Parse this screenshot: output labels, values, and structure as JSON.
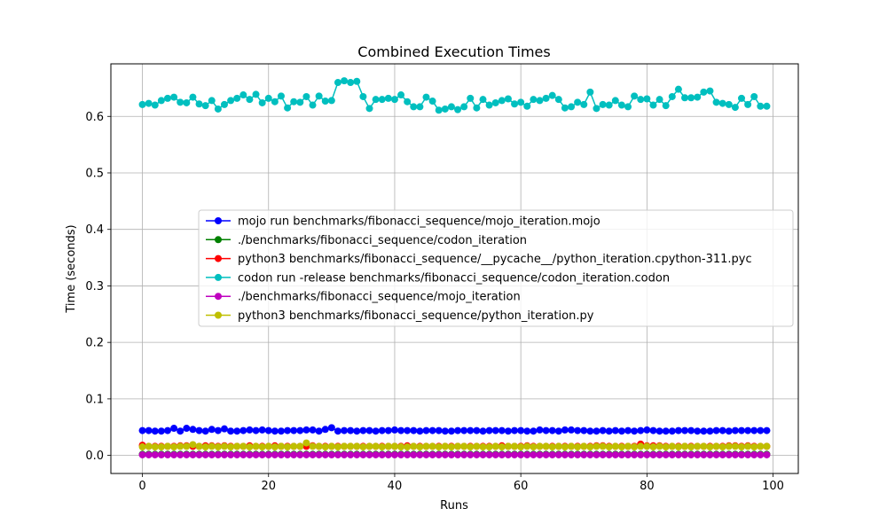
{
  "chart_data": {
    "type": "line",
    "title": "Combined Execution Times",
    "xlabel": "Runs",
    "ylabel": "Time (seconds)",
    "xlim": [
      -5,
      104
    ],
    "ylim": [
      -0.032,
      0.693
    ],
    "xticks": [
      0,
      20,
      40,
      60,
      80,
      100
    ],
    "yticks": [
      0.0,
      0.1,
      0.2,
      0.3,
      0.4,
      0.5,
      0.6
    ],
    "grid": true,
    "legend_placement": "center-right",
    "x": [
      0,
      1,
      2,
      3,
      4,
      5,
      6,
      7,
      8,
      9,
      10,
      11,
      12,
      13,
      14,
      15,
      16,
      17,
      18,
      19,
      20,
      21,
      22,
      23,
      24,
      25,
      26,
      27,
      28,
      29,
      30,
      31,
      32,
      33,
      34,
      35,
      36,
      37,
      38,
      39,
      40,
      41,
      42,
      43,
      44,
      45,
      46,
      47,
      48,
      49,
      50,
      51,
      52,
      53,
      54,
      55,
      56,
      57,
      58,
      59,
      60,
      61,
      62,
      63,
      64,
      65,
      66,
      67,
      68,
      69,
      70,
      71,
      72,
      73,
      74,
      75,
      76,
      77,
      78,
      79,
      80,
      81,
      82,
      83,
      84,
      85,
      86,
      87,
      88,
      89,
      90,
      91,
      92,
      93,
      94,
      95,
      96,
      97,
      98,
      99
    ],
    "series": [
      {
        "name": "mojo run benchmarks/fibonacci_sequence/mojo_iteration.mojo",
        "color": "#0000ff",
        "values": [
          0.044,
          0.044,
          0.043,
          0.043,
          0.044,
          0.048,
          0.043,
          0.048,
          0.046,
          0.044,
          0.043,
          0.046,
          0.044,
          0.047,
          0.043,
          0.043,
          0.044,
          0.045,
          0.044,
          0.045,
          0.044,
          0.043,
          0.043,
          0.044,
          0.044,
          0.044,
          0.045,
          0.045,
          0.043,
          0.046,
          0.049,
          0.043,
          0.044,
          0.044,
          0.043,
          0.044,
          0.044,
          0.043,
          0.044,
          0.044,
          0.045,
          0.044,
          0.044,
          0.044,
          0.043,
          0.044,
          0.044,
          0.044,
          0.043,
          0.043,
          0.044,
          0.044,
          0.044,
          0.044,
          0.043,
          0.044,
          0.044,
          0.044,
          0.043,
          0.044,
          0.044,
          0.043,
          0.043,
          0.045,
          0.044,
          0.044,
          0.043,
          0.045,
          0.045,
          0.044,
          0.044,
          0.043,
          0.043,
          0.044,
          0.043,
          0.044,
          0.043,
          0.044,
          0.043,
          0.044,
          0.045,
          0.044,
          0.043,
          0.043,
          0.043,
          0.044,
          0.044,
          0.044,
          0.043,
          0.043,
          0.043,
          0.044,
          0.044,
          0.043,
          0.044,
          0.044,
          0.044,
          0.044,
          0.044,
          0.044
        ]
      },
      {
        "name": "./benchmarks/fibonacci_sequence/codon_iteration",
        "color": "#008000",
        "values": [
          0.002,
          0.002,
          0.002,
          0.002,
          0.002,
          0.002,
          0.002,
          0.002,
          0.002,
          0.002,
          0.002,
          0.002,
          0.002,
          0.002,
          0.002,
          0.002,
          0.002,
          0.002,
          0.002,
          0.002,
          0.002,
          0.002,
          0.002,
          0.002,
          0.002,
          0.002,
          0.002,
          0.002,
          0.002,
          0.002,
          0.002,
          0.002,
          0.002,
          0.002,
          0.002,
          0.002,
          0.002,
          0.002,
          0.002,
          0.002,
          0.002,
          0.002,
          0.002,
          0.002,
          0.002,
          0.002,
          0.002,
          0.002,
          0.002,
          0.002,
          0.002,
          0.002,
          0.002,
          0.002,
          0.002,
          0.002,
          0.002,
          0.002,
          0.002,
          0.002,
          0.002,
          0.002,
          0.002,
          0.002,
          0.002,
          0.002,
          0.002,
          0.002,
          0.002,
          0.002,
          0.002,
          0.002,
          0.002,
          0.002,
          0.002,
          0.002,
          0.002,
          0.002,
          0.002,
          0.002,
          0.002,
          0.002,
          0.002,
          0.002,
          0.002,
          0.002,
          0.002,
          0.002,
          0.002,
          0.002,
          0.002,
          0.002,
          0.002,
          0.002,
          0.002,
          0.002,
          0.002,
          0.002,
          0.002,
          0.002
        ]
      },
      {
        "name": "python3 benchmarks/fibonacci_sequence/__pycache__/python_iteration.cpython-311.pyc",
        "color": "#ff0000",
        "values": [
          0.018,
          0.016,
          0.016,
          0.016,
          0.016,
          0.016,
          0.017,
          0.017,
          0.016,
          0.016,
          0.017,
          0.017,
          0.016,
          0.017,
          0.016,
          0.016,
          0.016,
          0.017,
          0.016,
          0.016,
          0.016,
          0.017,
          0.016,
          0.016,
          0.016,
          0.016,
          0.016,
          0.017,
          0.016,
          0.016,
          0.016,
          0.016,
          0.016,
          0.016,
          0.016,
          0.016,
          0.016,
          0.016,
          0.016,
          0.016,
          0.016,
          0.016,
          0.017,
          0.016,
          0.016,
          0.016,
          0.016,
          0.016,
          0.016,
          0.016,
          0.016,
          0.016,
          0.016,
          0.016,
          0.016,
          0.016,
          0.016,
          0.017,
          0.016,
          0.016,
          0.016,
          0.017,
          0.016,
          0.016,
          0.016,
          0.016,
          0.016,
          0.016,
          0.016,
          0.016,
          0.016,
          0.016,
          0.017,
          0.017,
          0.016,
          0.016,
          0.016,
          0.016,
          0.016,
          0.02,
          0.017,
          0.017,
          0.017,
          0.016,
          0.016,
          0.016,
          0.016,
          0.016,
          0.016,
          0.016,
          0.016,
          0.016,
          0.016,
          0.017,
          0.017,
          0.016,
          0.017,
          0.016,
          0.016,
          0.016
        ]
      },
      {
        "name": "codon run -release benchmarks/fibonacci_sequence/codon_iteration.codon",
        "color": "#00bfbf",
        "values": [
          0.621,
          0.623,
          0.62,
          0.628,
          0.632,
          0.634,
          0.625,
          0.624,
          0.634,
          0.622,
          0.619,
          0.628,
          0.613,
          0.621,
          0.628,
          0.632,
          0.638,
          0.63,
          0.639,
          0.624,
          0.632,
          0.626,
          0.636,
          0.615,
          0.626,
          0.625,
          0.635,
          0.62,
          0.636,
          0.627,
          0.628,
          0.66,
          0.663,
          0.66,
          0.662,
          0.635,
          0.614,
          0.63,
          0.63,
          0.632,
          0.63,
          0.638,
          0.626,
          0.617,
          0.617,
          0.634,
          0.627,
          0.611,
          0.613,
          0.617,
          0.612,
          0.617,
          0.632,
          0.615,
          0.63,
          0.62,
          0.624,
          0.628,
          0.631,
          0.622,
          0.625,
          0.618,
          0.63,
          0.628,
          0.632,
          0.637,
          0.63,
          0.615,
          0.617,
          0.625,
          0.621,
          0.643,
          0.614,
          0.621,
          0.62,
          0.628,
          0.62,
          0.617,
          0.636,
          0.63,
          0.631,
          0.62,
          0.63,
          0.619,
          0.635,
          0.648,
          0.633,
          0.633,
          0.634,
          0.643,
          0.645,
          0.625,
          0.623,
          0.621,
          0.616,
          0.632,
          0.621,
          0.635,
          0.618,
          0.618
        ]
      },
      {
        "name": "./benchmarks/fibonacci_sequence/mojo_iteration",
        "color": "#bf00bf",
        "values": [
          0.001,
          0.001,
          0.001,
          0.001,
          0.001,
          0.001,
          0.001,
          0.001,
          0.001,
          0.001,
          0.001,
          0.001,
          0.001,
          0.001,
          0.001,
          0.001,
          0.001,
          0.001,
          0.001,
          0.001,
          0.001,
          0.001,
          0.001,
          0.001,
          0.001,
          0.001,
          0.001,
          0.001,
          0.001,
          0.001,
          0.001,
          0.001,
          0.001,
          0.001,
          0.001,
          0.001,
          0.001,
          0.001,
          0.001,
          0.001,
          0.001,
          0.001,
          0.001,
          0.001,
          0.001,
          0.001,
          0.001,
          0.001,
          0.001,
          0.001,
          0.001,
          0.001,
          0.001,
          0.001,
          0.001,
          0.001,
          0.001,
          0.001,
          0.001,
          0.001,
          0.001,
          0.001,
          0.001,
          0.001,
          0.001,
          0.001,
          0.001,
          0.001,
          0.001,
          0.001,
          0.001,
          0.001,
          0.001,
          0.001,
          0.001,
          0.001,
          0.001,
          0.001,
          0.001,
          0.001,
          0.001,
          0.001,
          0.001,
          0.001,
          0.001,
          0.001,
          0.001,
          0.001,
          0.001,
          0.001,
          0.001,
          0.001,
          0.001,
          0.001,
          0.001,
          0.001,
          0.001,
          0.001,
          0.001,
          0.001
        ]
      },
      {
        "name": "python3 benchmarks/fibonacci_sequence/python_iteration.py",
        "color": "#bfbf00",
        "values": [
          0.015,
          0.016,
          0.015,
          0.015,
          0.016,
          0.015,
          0.016,
          0.016,
          0.019,
          0.016,
          0.015,
          0.016,
          0.015,
          0.016,
          0.015,
          0.016,
          0.016,
          0.015,
          0.016,
          0.015,
          0.016,
          0.015,
          0.016,
          0.015,
          0.016,
          0.016,
          0.022,
          0.016,
          0.016,
          0.015,
          0.016,
          0.015,
          0.016,
          0.016,
          0.016,
          0.015,
          0.016,
          0.016,
          0.015,
          0.016,
          0.016,
          0.015,
          0.015,
          0.016,
          0.015,
          0.016,
          0.016,
          0.015,
          0.016,
          0.015,
          0.016,
          0.016,
          0.015,
          0.016,
          0.015,
          0.015,
          0.016,
          0.015,
          0.016,
          0.016,
          0.015,
          0.016,
          0.015,
          0.016,
          0.016,
          0.015,
          0.016,
          0.015,
          0.016,
          0.015,
          0.016,
          0.015,
          0.016,
          0.016,
          0.015,
          0.016,
          0.015,
          0.016,
          0.015,
          0.016,
          0.016,
          0.015,
          0.016,
          0.015,
          0.016,
          0.015,
          0.016,
          0.015,
          0.016,
          0.016,
          0.015,
          0.016,
          0.015,
          0.016,
          0.016,
          0.015,
          0.016,
          0.015,
          0.016,
          0.016
        ]
      }
    ]
  }
}
